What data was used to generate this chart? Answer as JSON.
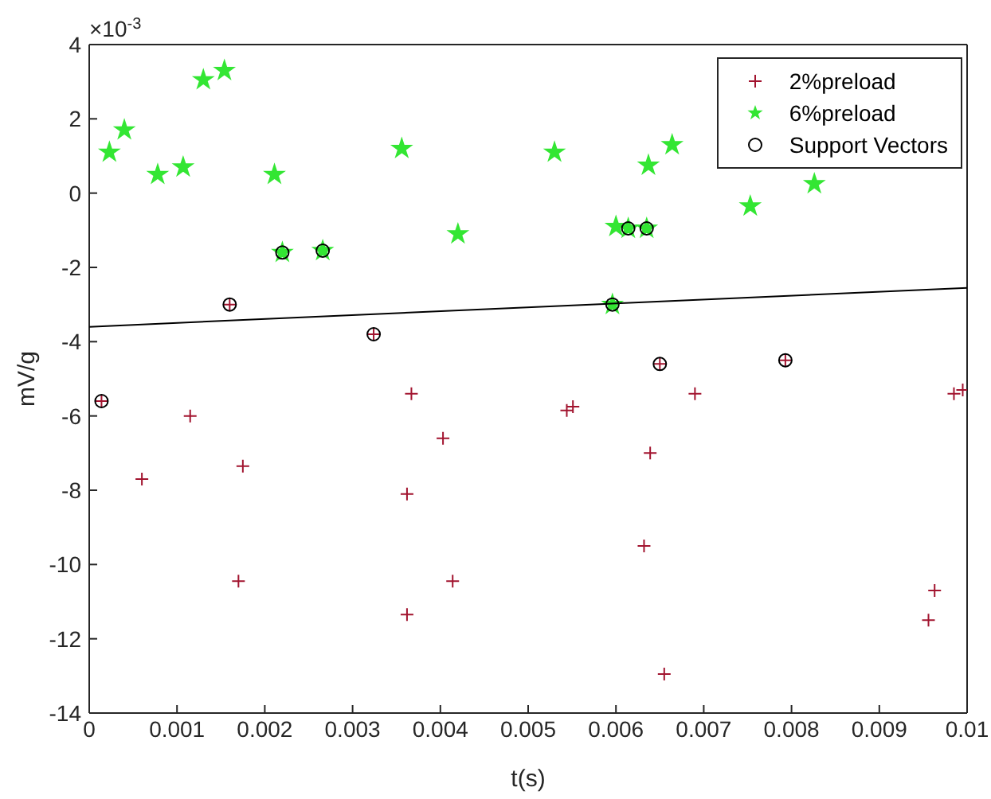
{
  "chart_data": {
    "type": "scatter",
    "xlabel": "t(s)",
    "ylabel": "mV/g",
    "annotations": [
      "×10$^{-3}$"
    ],
    "xlim": [
      0,
      0.01
    ],
    "xticks": [
      0,
      0.001,
      0.002,
      0.003,
      0.004,
      0.005,
      0.006,
      0.007,
      0.008,
      0.009,
      0.01
    ],
    "ylim": [
      -14,
      4
    ],
    "yticks": [
      -14,
      -12,
      -10,
      -8,
      -6,
      -4,
      -2,
      0,
      2,
      4
    ],
    "legend": "top right",
    "series": [
      {
        "name": "2%preload",
        "color": "#a2142f",
        "marker": "cross",
        "x": [
          0.00014,
          0.0006,
          0.00115,
          0.00175,
          0.0017,
          0.0016,
          0.00324,
          0.00367,
          0.00362,
          0.00403,
          0.00414,
          0.00362,
          0.00544,
          0.00551,
          0.0069,
          0.00639,
          0.00632,
          0.00655,
          0.0065,
          0.00793,
          0.00985,
          0.00995,
          0.00963,
          0.00956
        ],
        "values": [
          -5.6,
          -7.7,
          -6.0,
          -7.35,
          -10.45,
          -3.0,
          -3.8,
          -5.4,
          -8.1,
          -6.6,
          -10.45,
          -11.35,
          -5.85,
          -5.75,
          -5.4,
          -7.0,
          -9.5,
          -12.95,
          -4.6,
          -4.5,
          -5.4,
          -5.3,
          -10.7,
          -11.5
        ]
      },
      {
        "name": "6%preload",
        "color": "#33e633",
        "marker": "star",
        "x": [
          0.00023,
          0.0004,
          0.00078,
          0.00107,
          0.0013,
          0.00154,
          0.00211,
          0.0022,
          0.00266,
          0.00356,
          0.0042,
          0.0053,
          0.006,
          0.00614,
          0.00635,
          0.00637,
          0.00664,
          0.00596,
          0.00753,
          0.00826
        ],
        "values": [
          1.1,
          1.7,
          0.5,
          0.7,
          3.05,
          3.3,
          0.5,
          -1.6,
          -1.55,
          1.2,
          -1.1,
          1.1,
          -0.9,
          -0.95,
          -0.95,
          0.75,
          1.3,
          -3.0,
          -0.35,
          0.25
        ]
      },
      {
        "name": "Support Vectors",
        "color": "#000000",
        "marker": "circle",
        "x": [
          0.00014,
          0.0016,
          0.00324,
          0.0065,
          0.00793,
          0.0022,
          0.00266,
          0.00614,
          0.00635,
          0.00596
        ],
        "values": [
          -5.6,
          -3.0,
          -3.8,
          -4.6,
          -4.5,
          -1.6,
          -1.55,
          -0.95,
          -0.95,
          -3.0
        ]
      },
      {
        "type": "line",
        "color": "#000000",
        "marker": "none",
        "x": [
          0,
          0.01
        ],
        "values": [
          -3.6,
          -2.55
        ]
      }
    ]
  }
}
